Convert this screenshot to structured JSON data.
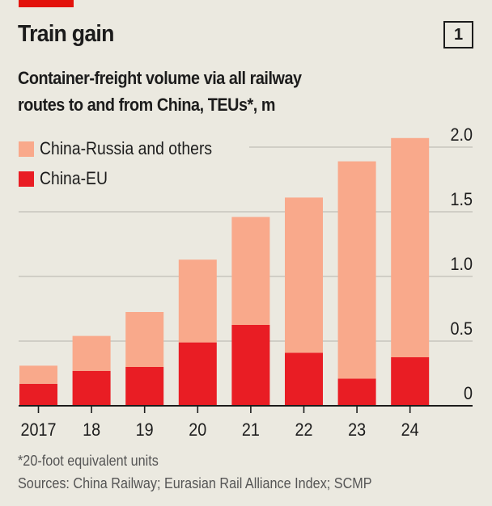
{
  "header": {
    "title": "Train gain",
    "chart_number": "1",
    "subtitle_line1": "Container-freight volume via all railway",
    "subtitle_line2": "routes to and from China, TEUs*, m"
  },
  "colors": {
    "accent": "#e3120b",
    "china_eu": "#e91d24",
    "china_russia_others": "#f9a98b",
    "gridline": "#c8c6bd",
    "axis": "#1c1c1c",
    "background": "#ebe9e0"
  },
  "legend": [
    {
      "label": "China-Russia and others",
      "color": "#f9a98b"
    },
    {
      "label": "China-EU",
      "color": "#e91d24"
    }
  ],
  "footnotes": {
    "note": "*20-foot equivalent units",
    "sources": "Sources: China Railway; Eurasian Rail Alliance Index; SCMP"
  },
  "chart_data": {
    "type": "bar",
    "stacked": true,
    "title": "Train gain",
    "subtitle": "Container-freight volume via all railway routes to and from China, TEUs*, m",
    "categories": [
      "2017",
      "18",
      "19",
      "20",
      "21",
      "22",
      "23",
      "24"
    ],
    "series": [
      {
        "name": "China-EU",
        "values": [
          0.17,
          0.27,
          0.3,
          0.49,
          0.625,
          0.41,
          0.21,
          0.375
        ]
      },
      {
        "name": "China-Russia and others",
        "values": [
          0.14,
          0.27,
          0.425,
          0.64,
          0.835,
          1.2,
          1.68,
          1.695
        ]
      }
    ],
    "totals": [
      0.31,
      0.54,
      0.725,
      1.13,
      1.46,
      1.61,
      1.89,
      2.07
    ],
    "xlabel": "",
    "ylabel": "TEUs, m",
    "ylim": [
      0,
      2.0
    ],
    "yticks": [
      0,
      0.5,
      1.0,
      1.5,
      2.0
    ],
    "ytick_labels": [
      "0",
      "0.5",
      "1.0",
      "1.5",
      "2.0"
    ],
    "y_axis_side": "right",
    "grid": true,
    "legend_position": "top-left"
  }
}
